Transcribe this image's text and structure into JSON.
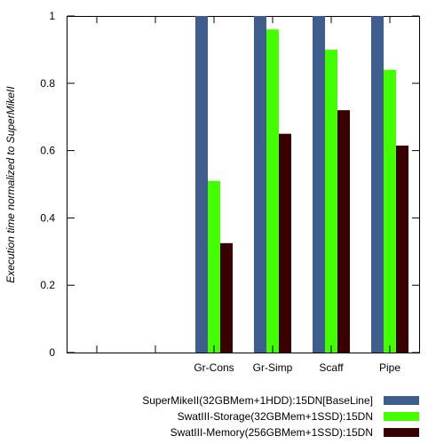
{
  "chart_data": {
    "type": "bar",
    "title": "",
    "xlabel": "",
    "ylabel": "Execution time normalized to SuperMikeII",
    "categories": [
      "",
      "",
      "Gr-Cons",
      "Gr-Simp",
      "Scaff",
      "Pipe"
    ],
    "ylim": [
      0,
      1
    ],
    "yticks": [
      0,
      0.2,
      0.4,
      0.6,
      0.8,
      1
    ],
    "ytick_labels": [
      "0",
      "0.2",
      "0.4",
      "0.6",
      "0.8",
      "1"
    ],
    "grid": false,
    "legend_position": "bottom-right",
    "series": [
      {
        "name": "SuperMikeII(32GBMem+1HDD):15DN[BaseLine]",
        "color": "#3e5e8e",
        "values": [
          null,
          null,
          1.0,
          1.0,
          1.0,
          1.0
        ]
      },
      {
        "name": "SwatIII-Storage(32GBMem+1SSD):15DN",
        "color": "#44ff00",
        "values": [
          null,
          null,
          0.51,
          0.96,
          0.9,
          0.84
        ]
      },
      {
        "name": "SwatIII-Memory(256GBMem+1SSD):15DN",
        "color": "#3a0000",
        "values": [
          null,
          null,
          0.325,
          0.65,
          0.72,
          0.615
        ]
      }
    ]
  }
}
